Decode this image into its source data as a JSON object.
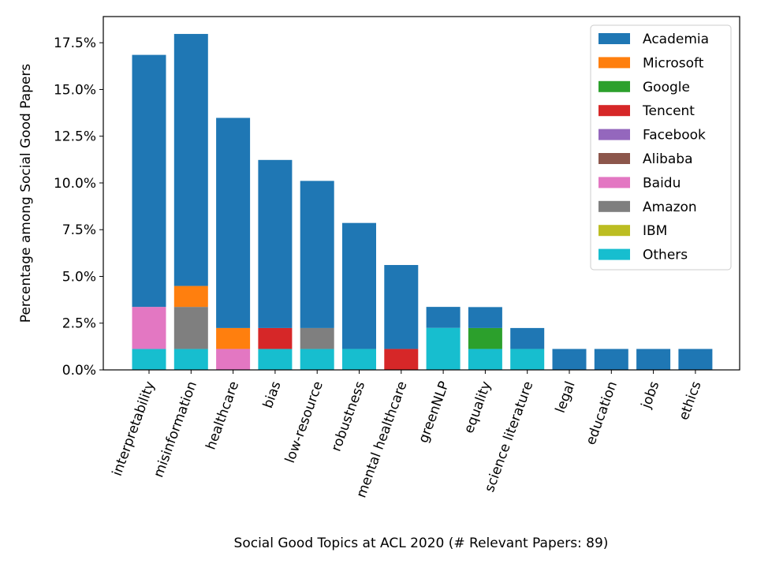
{
  "chart_data": {
    "type": "bar",
    "stacked": true,
    "xlabel": "Social Good Topics at ACL 2020 (# Relevant Papers: 89)",
    "ylabel": "Percentage among Social Good Papers",
    "ylim": [
      0,
      18.9
    ],
    "yticks": [
      0.0,
      2.5,
      5.0,
      7.5,
      10.0,
      12.5,
      15.0,
      17.5
    ],
    "ytick_labels": [
      "0.0%",
      "2.5%",
      "5.0%",
      "7.5%",
      "10.0%",
      "12.5%",
      "15.0%",
      "17.5%"
    ],
    "categories": [
      "interpretability",
      "misinformation",
      "healthcare",
      "bias",
      "low-resource",
      "robustness",
      "mental healthcare",
      "greenNLP",
      "equality",
      "science literature",
      "legal",
      "education",
      "jobs",
      "ethics"
    ],
    "legend_position": "top-right",
    "stack_order": [
      "Others",
      "Baidu",
      "Amazon",
      "Microsoft",
      "Tencent",
      "Google",
      "Facebook",
      "Alibaba",
      "IBM",
      "Academia"
    ],
    "series": [
      {
        "name": "Academia",
        "color": "#1f77b4",
        "values": [
          13.48,
          13.48,
          11.24,
          8.99,
          7.87,
          6.74,
          4.49,
          1.12,
          1.12,
          1.12,
          1.12,
          1.12,
          1.12,
          1.12
        ]
      },
      {
        "name": "Microsoft",
        "color": "#ff7f0e",
        "values": [
          0,
          1.12,
          1.12,
          0,
          0,
          0,
          0,
          0,
          0,
          0,
          0,
          0,
          0,
          0
        ]
      },
      {
        "name": "Google",
        "color": "#2ca02c",
        "values": [
          0,
          0,
          0,
          0,
          0,
          0,
          0,
          0,
          1.12,
          0,
          0,
          0,
          0,
          0
        ]
      },
      {
        "name": "Tencent",
        "color": "#d62728",
        "values": [
          0,
          0,
          0,
          1.12,
          0,
          0,
          1.12,
          0,
          0,
          0,
          0,
          0,
          0,
          0
        ]
      },
      {
        "name": "Facebook",
        "color": "#9467bd",
        "values": [
          0,
          0,
          0,
          0,
          0,
          0,
          0,
          0,
          0,
          0,
          0,
          0,
          0,
          0
        ]
      },
      {
        "name": "Alibaba",
        "color": "#8c564b",
        "values": [
          0,
          0,
          0,
          0,
          0,
          0,
          0,
          0,
          0,
          0,
          0,
          0,
          0,
          0
        ]
      },
      {
        "name": "Baidu",
        "color": "#e377c2",
        "values": [
          2.25,
          0,
          1.12,
          0,
          0,
          0,
          0,
          0,
          0,
          0,
          0,
          0,
          0,
          0
        ]
      },
      {
        "name": "Amazon",
        "color": "#7f7f7f",
        "values": [
          0,
          2.25,
          0,
          0,
          1.12,
          0,
          0,
          0,
          0,
          0,
          0,
          0,
          0,
          0
        ]
      },
      {
        "name": "IBM",
        "color": "#bcbd22",
        "values": [
          0,
          0,
          0,
          0,
          0,
          0,
          0,
          0,
          0,
          0,
          0,
          0,
          0,
          0
        ]
      },
      {
        "name": "Others",
        "color": "#17becf",
        "values": [
          1.12,
          1.12,
          0,
          1.12,
          1.12,
          1.12,
          0,
          2.25,
          1.12,
          1.12,
          0,
          0,
          0,
          0
        ]
      }
    ]
  }
}
